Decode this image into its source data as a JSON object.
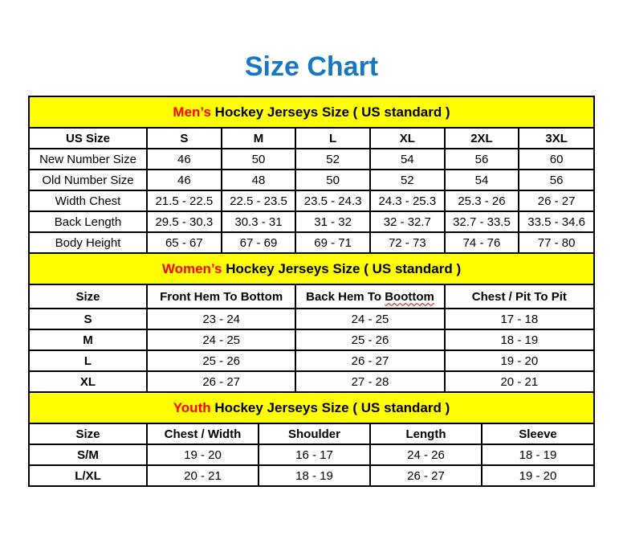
{
  "page": {
    "title": "Size Chart"
  },
  "colors": {
    "title_blue": "#1777c4",
    "accent_red": "#ff0000",
    "band_yellow": "#ffff00",
    "border_black": "#000000",
    "squiggle_red": "#cc0000"
  },
  "mens": {
    "band": {
      "red": "Men’s",
      "rest": " Hockey Jerseys Size ( US standard )"
    },
    "columns": [
      "US Size",
      "S",
      "M",
      "L",
      "XL",
      "2XL",
      "3XL"
    ],
    "rows": [
      {
        "label": "New Number Size",
        "values": [
          "46",
          "50",
          "52",
          "54",
          "56",
          "60"
        ]
      },
      {
        "label": "Old Number Size",
        "values": [
          "46",
          "48",
          "50",
          "52",
          "54",
          "56"
        ]
      },
      {
        "label": "Width Chest",
        "values": [
          "21.5 - 22.5",
          "22.5 - 23.5",
          "23.5 - 24.3",
          "24.3 - 25.3",
          "25.3 - 26",
          "26 - 27"
        ]
      },
      {
        "label": "Back Length",
        "values": [
          "29.5 - 30.3",
          "30.3 - 31",
          "31 - 32",
          "32 - 32.7",
          "32.7 - 33.5",
          "33.5 - 34.6"
        ]
      },
      {
        "label": "Body Height",
        "values": [
          "65 - 67",
          "67 - 69",
          "69 - 71",
          "72 - 73",
          "74 - 76",
          "77 - 80"
        ]
      }
    ]
  },
  "womens": {
    "band": {
      "red": "Women’s",
      "rest": " Hockey Jerseys Size ( US standard )"
    },
    "columns": {
      "size": "Size",
      "front": "Front Hem To Bottom",
      "back_prefix": "Back Hem To ",
      "back_misspelled": "Boottom",
      "chest": "Chest / Pit To Pit"
    },
    "rows": [
      {
        "label": "S",
        "values": [
          "23 - 24",
          "24 - 25",
          "17 - 18"
        ]
      },
      {
        "label": "M",
        "values": [
          "24 - 25",
          "25 - 26",
          "18 - 19"
        ]
      },
      {
        "label": "L",
        "values": [
          "25 - 26",
          "26 - 27",
          "19 - 20"
        ]
      },
      {
        "label": "XL",
        "values": [
          "26 - 27",
          "27 - 28",
          "20 - 21"
        ]
      }
    ]
  },
  "youth": {
    "band": {
      "red": "Youth",
      "rest": " Hockey Jerseys Size ( US standard )"
    },
    "columns": [
      "Size",
      "Chest / Width",
      "Shoulder",
      "Length",
      "Sleeve"
    ],
    "rows": [
      {
        "label": "S/M",
        "values": [
          "19 - 20",
          "16 - 17",
          "24 - 26",
          "18 - 19"
        ]
      },
      {
        "label": "L/XL",
        "values": [
          "20 - 21",
          "18 - 19",
          "26 - 27",
          "19 - 20"
        ]
      }
    ]
  }
}
